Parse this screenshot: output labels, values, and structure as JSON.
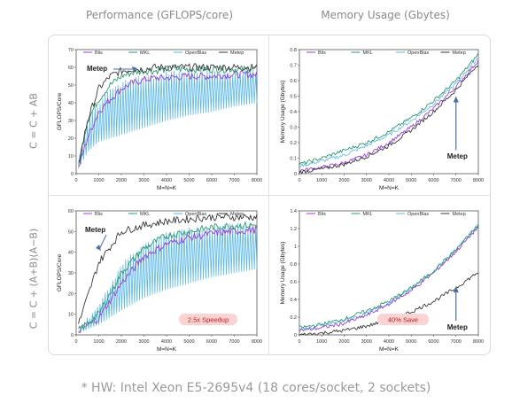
{
  "headers": {
    "performance": "Performance (GFLOPS/core)",
    "memory": "Memory Usage (Gbytes)"
  },
  "row_labels": [
    "C = C + AB",
    "C = C + (A+B)(A−B)"
  ],
  "footnote": "* HW: Intel Xeon E5-2695v4 (18 cores/socket, 2 sockets)",
  "colors": {
    "Blis": "#9b3fd6",
    "MKL": "#2e9a6e",
    "OpenBlas": "#5bb8e6",
    "Metep": "#3a3a3a",
    "arrow": "#4a6fa5",
    "badge_bg": "#fbd3d3",
    "badge_text": "#b71c1c"
  },
  "chart_data": [
    {
      "id": "perf-ab",
      "type": "line",
      "xlabel": "M=N=K",
      "ylabel": "GFLOPS/Core",
      "xlim": [
        0,
        8000
      ],
      "ylim": [
        0,
        70
      ],
      "xticks": [
        0,
        1000,
        2000,
        3000,
        4000,
        5000,
        6000,
        7000,
        8000
      ],
      "yticks": [
        0,
        10,
        20,
        30,
        40,
        50,
        60,
        70
      ],
      "legend": [
        "Blis",
        "MKL",
        "OpenBlas",
        "Metep"
      ],
      "annotation": {
        "text": "Metep",
        "x": 2700,
        "y": 61
      },
      "series": [
        {
          "name": "Blis",
          "x": [
            100,
            500,
            1000,
            1500,
            2000,
            2500,
            3000,
            3500,
            4000,
            5000,
            6000,
            7000,
            8000
          ],
          "y": [
            3,
            20,
            35,
            42,
            48,
            51,
            53,
            54,
            54,
            55,
            55,
            56,
            56
          ]
        },
        {
          "name": "MKL",
          "x": [
            100,
            500,
            1000,
            1500,
            2000,
            2500,
            3000,
            3500,
            4000,
            5000,
            6000,
            7000,
            8000
          ],
          "y": [
            5,
            30,
            42,
            50,
            55,
            57,
            58,
            58,
            59,
            59,
            59,
            59,
            59
          ]
        },
        {
          "name": "OpenBlas",
          "x": [
            100,
            500,
            1000,
            1500,
            2000,
            2500,
            3000,
            3500,
            4000,
            5000,
            6000,
            7000,
            8000
          ],
          "y": [
            3,
            12,
            18,
            20,
            22,
            24,
            26,
            28,
            30,
            33,
            35,
            38,
            40
          ],
          "upper": [
            8,
            30,
            42,
            48,
            52,
            55,
            56,
            57,
            58,
            58,
            59,
            59,
            59
          ]
        },
        {
          "name": "Metep",
          "x": [
            100,
            500,
            1000,
            1500,
            2000,
            2500,
            3000,
            3500,
            4000,
            5000,
            6000,
            7000,
            8000
          ],
          "y": [
            5,
            30,
            48,
            55,
            58,
            59,
            59,
            60,
            60,
            60,
            60,
            60,
            60
          ]
        }
      ]
    },
    {
      "id": "mem-ab",
      "type": "line",
      "xlabel": "M=N=K",
      "ylabel": "Memory Usage (Gbytes)",
      "xlim": [
        0,
        8000
      ],
      "ylim": [
        0,
        0.8
      ],
      "xticks": [
        0,
        1000,
        2000,
        3000,
        4000,
        5000,
        6000,
        7000,
        8000
      ],
      "yticks": [
        0,
        0.1,
        0.2,
        0.3,
        0.4,
        0.5,
        0.6,
        0.7,
        0.8
      ],
      "legend": [
        "Blis",
        "MKL",
        "OpenBlas",
        "Metep"
      ],
      "annotation": {
        "text": "Metep",
        "x": 7000,
        "y": 0.12
      },
      "series": [
        {
          "name": "Blis",
          "x": [
            0,
            1000,
            2000,
            3000,
            4000,
            5000,
            6000,
            7000,
            8000
          ],
          "y": [
            0.02,
            0.04,
            0.07,
            0.12,
            0.2,
            0.3,
            0.42,
            0.56,
            0.73
          ]
        },
        {
          "name": "MKL",
          "x": [
            0,
            1000,
            2000,
            3000,
            4000,
            5000,
            6000,
            7000,
            8000
          ],
          "y": [
            0.06,
            0.1,
            0.15,
            0.2,
            0.27,
            0.36,
            0.47,
            0.6,
            0.77
          ]
        },
        {
          "name": "OpenBlas",
          "x": [
            0,
            1000,
            2000,
            3000,
            4000,
            5000,
            6000,
            7000,
            8000
          ],
          "y": [
            0.05,
            0.08,
            0.12,
            0.18,
            0.25,
            0.34,
            0.45,
            0.58,
            0.75
          ]
        },
        {
          "name": "Metep",
          "x": [
            0,
            1000,
            2000,
            3000,
            4000,
            5000,
            6000,
            7000,
            8000
          ],
          "y": [
            0.01,
            0.03,
            0.06,
            0.11,
            0.18,
            0.28,
            0.4,
            0.54,
            0.71
          ]
        }
      ]
    },
    {
      "id": "perf-apb",
      "type": "line",
      "xlabel": "M=N=K",
      "ylabel": "GFLOPS/Core",
      "xlim": [
        0,
        8000
      ],
      "ylim": [
        0,
        60
      ],
      "xticks": [
        0,
        1000,
        2000,
        3000,
        4000,
        5000,
        6000,
        7000,
        8000
      ],
      "yticks": [
        0,
        10,
        20,
        30,
        40,
        50,
        60
      ],
      "legend": [
        "Blis",
        "MKL",
        "OpenBlas",
        "Metep"
      ],
      "annotation": {
        "text": "Metep",
        "x": 1000,
        "y": 52
      },
      "badge": "2.5x Speedup",
      "series": [
        {
          "name": "Blis",
          "x": [
            100,
            1000,
            2000,
            3000,
            4000,
            5000,
            6000,
            7000,
            8000
          ],
          "y": [
            2,
            8,
            25,
            38,
            44,
            47,
            49,
            50,
            51
          ]
        },
        {
          "name": "MKL",
          "x": [
            100,
            1000,
            2000,
            3000,
            4000,
            5000,
            6000,
            7000,
            8000
          ],
          "y": [
            2,
            10,
            30,
            42,
            48,
            50,
            52,
            53,
            53
          ]
        },
        {
          "name": "OpenBlas",
          "x": [
            100,
            1000,
            2000,
            3000,
            4000,
            5000,
            6000,
            7000,
            8000
          ],
          "y": [
            1,
            5,
            12,
            18,
            22,
            25,
            28,
            30,
            32
          ],
          "upper": [
            3,
            15,
            35,
            45,
            50,
            52,
            53,
            54,
            54
          ]
        },
        {
          "name": "Metep",
          "x": [
            100,
            1000,
            2000,
            3000,
            4000,
            5000,
            6000,
            7000,
            8000
          ],
          "y": [
            5,
            35,
            50,
            53,
            55,
            56,
            57,
            57,
            57
          ]
        }
      ]
    },
    {
      "id": "mem-apb",
      "type": "line",
      "xlabel": "M=N=K",
      "ylabel": "Memory Usage (Gbytes)",
      "xlim": [
        0,
        8000
      ],
      "ylim": [
        0,
        1.4
      ],
      "xticks": [
        0,
        1000,
        2000,
        3000,
        4000,
        5000,
        6000,
        7000,
        8000
      ],
      "yticks": [
        0,
        0.2,
        0.4,
        0.6,
        0.8,
        1,
        1.2,
        1.4
      ],
      "legend": [
        "Blis",
        "MKL",
        "OpenBlas",
        "Metep"
      ],
      "annotation": {
        "text": "Metep",
        "x": 7000,
        "y": 0.1
      },
      "badge": "40% Save",
      "series": [
        {
          "name": "Blis",
          "x": [
            0,
            1000,
            2000,
            3000,
            4000,
            5000,
            6000,
            7000,
            8000
          ],
          "y": [
            0.05,
            0.08,
            0.13,
            0.22,
            0.35,
            0.5,
            0.7,
            0.94,
            1.22
          ]
        },
        {
          "name": "MKL",
          "x": [
            0,
            1000,
            2000,
            3000,
            4000,
            5000,
            6000,
            7000,
            8000
          ],
          "y": [
            0.08,
            0.12,
            0.18,
            0.27,
            0.38,
            0.53,
            0.72,
            0.96,
            1.24
          ]
        },
        {
          "name": "OpenBlas",
          "x": [
            0,
            1000,
            2000,
            3000,
            4000,
            5000,
            6000,
            7000,
            8000
          ],
          "y": [
            0.06,
            0.1,
            0.16,
            0.24,
            0.36,
            0.52,
            0.72,
            0.96,
            1.25
          ]
        },
        {
          "name": "Metep",
          "x": [
            0,
            1000,
            2000,
            3000,
            4000,
            5000,
            6000,
            7000,
            8000
          ],
          "y": [
            0.0,
            0.02,
            0.05,
            0.1,
            0.17,
            0.26,
            0.38,
            0.53,
            0.71
          ]
        }
      ]
    }
  ]
}
